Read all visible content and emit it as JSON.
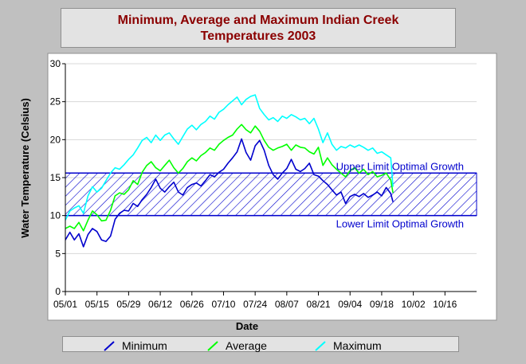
{
  "chart_data": {
    "type": "line",
    "title_line1": "Minimum, Average and Maximum Indian Creek",
    "title_line2": "Temperatures 2003",
    "xlabel": "Date",
    "ylabel": "Water Temperature (Celsius)",
    "ylim": [
      0,
      30
    ],
    "yticks": [
      0,
      5,
      10,
      15,
      20,
      25,
      30
    ],
    "x_tick_labels": [
      "05/01",
      "05/15",
      "05/29",
      "06/12",
      "06/26",
      "07/10",
      "07/24",
      "08/07",
      "08/21",
      "09/04",
      "09/18",
      "10/02",
      "10/16"
    ],
    "x_range_days": [
      0,
      182
    ],
    "grid": true,
    "legend_placement": "bottom",
    "band": {
      "lower": 10,
      "upper": 15.6,
      "upper_label": "Upper Limit Optimal Growth",
      "lower_label": "Lower Limit Optimal Growth",
      "color": "#0000cd"
    },
    "series": [
      {
        "name": "Minimum",
        "color": "#0000cd",
        "points": [
          [
            0,
            6.8
          ],
          [
            2,
            7.8
          ],
          [
            4,
            6.8
          ],
          [
            6,
            7.6
          ],
          [
            8,
            5.9
          ],
          [
            10,
            7.5
          ],
          [
            12,
            8.3
          ],
          [
            14,
            7.9
          ],
          [
            16,
            6.8
          ],
          [
            18,
            6.6
          ],
          [
            20,
            7.3
          ],
          [
            22,
            9.5
          ],
          [
            24,
            10.3
          ],
          [
            26,
            10.7
          ],
          [
            28,
            10.6
          ],
          [
            30,
            11.6
          ],
          [
            32,
            11.2
          ],
          [
            34,
            12.1
          ],
          [
            36,
            12.8
          ],
          [
            38,
            13.7
          ],
          [
            40,
            14.8
          ],
          [
            42,
            13.6
          ],
          [
            44,
            13.1
          ],
          [
            46,
            13.8
          ],
          [
            48,
            14.4
          ],
          [
            50,
            13.1
          ],
          [
            52,
            12.7
          ],
          [
            54,
            13.7
          ],
          [
            56,
            14.1
          ],
          [
            58,
            14.3
          ],
          [
            60,
            13.9
          ],
          [
            62,
            14.6
          ],
          [
            64,
            15.4
          ],
          [
            66,
            15.1
          ],
          [
            68,
            15.7
          ],
          [
            70,
            16.1
          ],
          [
            72,
            16.9
          ],
          [
            74,
            17.6
          ],
          [
            76,
            18.4
          ],
          [
            78,
            20.1
          ],
          [
            80,
            18.3
          ],
          [
            82,
            17.3
          ],
          [
            84,
            19.2
          ],
          [
            86,
            19.9
          ],
          [
            88,
            18.6
          ],
          [
            90,
            16.6
          ],
          [
            92,
            15.4
          ],
          [
            94,
            14.8
          ],
          [
            96,
            15.6
          ],
          [
            98,
            16.2
          ],
          [
            100,
            17.4
          ],
          [
            102,
            16.1
          ],
          [
            104,
            15.8
          ],
          [
            106,
            16.2
          ],
          [
            108,
            16.9
          ],
          [
            110,
            15.4
          ],
          [
            112,
            15.2
          ],
          [
            114,
            14.6
          ],
          [
            116,
            14.1
          ],
          [
            118,
            13.4
          ],
          [
            120,
            12.7
          ],
          [
            122,
            13.1
          ],
          [
            124,
            11.6
          ],
          [
            126,
            12.5
          ],
          [
            128,
            12.8
          ],
          [
            130,
            12.5
          ],
          [
            132,
            12.9
          ],
          [
            134,
            12.4
          ],
          [
            136,
            12.7
          ],
          [
            138,
            13.1
          ],
          [
            140,
            12.6
          ],
          [
            142,
            13.7
          ],
          [
            144,
            12.9
          ],
          [
            145,
            11.8
          ]
        ]
      },
      {
        "name": "Average",
        "color": "#00ff00",
        "points": [
          [
            0,
            8.3
          ],
          [
            2,
            8.6
          ],
          [
            4,
            8.3
          ],
          [
            6,
            9.1
          ],
          [
            8,
            8.0
          ],
          [
            10,
            9.4
          ],
          [
            12,
            10.6
          ],
          [
            14,
            10.1
          ],
          [
            16,
            9.3
          ],
          [
            18,
            9.4
          ],
          [
            20,
            10.7
          ],
          [
            22,
            12.6
          ],
          [
            24,
            13.0
          ],
          [
            26,
            12.8
          ],
          [
            28,
            13.4
          ],
          [
            30,
            14.6
          ],
          [
            32,
            14.1
          ],
          [
            34,
            15.7
          ],
          [
            36,
            16.6
          ],
          [
            38,
            17.1
          ],
          [
            40,
            16.3
          ],
          [
            42,
            15.9
          ],
          [
            44,
            16.6
          ],
          [
            46,
            17.3
          ],
          [
            48,
            16.3
          ],
          [
            50,
            15.6
          ],
          [
            52,
            16.2
          ],
          [
            54,
            17.1
          ],
          [
            56,
            17.6
          ],
          [
            58,
            17.2
          ],
          [
            60,
            17.9
          ],
          [
            62,
            18.3
          ],
          [
            64,
            18.9
          ],
          [
            66,
            18.6
          ],
          [
            68,
            19.4
          ],
          [
            70,
            19.9
          ],
          [
            72,
            20.3
          ],
          [
            74,
            20.6
          ],
          [
            76,
            21.4
          ],
          [
            78,
            22.0
          ],
          [
            80,
            21.3
          ],
          [
            82,
            20.9
          ],
          [
            84,
            21.8
          ],
          [
            86,
            21.1
          ],
          [
            88,
            19.9
          ],
          [
            90,
            19.0
          ],
          [
            92,
            18.6
          ],
          [
            94,
            18.9
          ],
          [
            96,
            19.1
          ],
          [
            98,
            19.4
          ],
          [
            100,
            18.6
          ],
          [
            102,
            19.3
          ],
          [
            104,
            19.0
          ],
          [
            106,
            18.9
          ],
          [
            108,
            18.4
          ],
          [
            110,
            18.1
          ],
          [
            112,
            19.0
          ],
          [
            114,
            16.6
          ],
          [
            116,
            17.6
          ],
          [
            118,
            16.7
          ],
          [
            120,
            16.1
          ],
          [
            122,
            15.6
          ],
          [
            124,
            15.1
          ],
          [
            126,
            15.9
          ],
          [
            128,
            16.3
          ],
          [
            130,
            15.6
          ],
          [
            132,
            16.1
          ],
          [
            134,
            15.4
          ],
          [
            136,
            15.8
          ],
          [
            138,
            15.1
          ],
          [
            140,
            15.3
          ],
          [
            142,
            15.6
          ],
          [
            144,
            14.7
          ],
          [
            145,
            13.0
          ]
        ]
      },
      {
        "name": "Maximum",
        "color": "#00ffff",
        "points": [
          [
            0,
            9.4
          ],
          [
            2,
            10.6
          ],
          [
            4,
            11.0
          ],
          [
            6,
            11.3
          ],
          [
            8,
            10.3
          ],
          [
            10,
            12.6
          ],
          [
            12,
            13.8
          ],
          [
            14,
            13.1
          ],
          [
            16,
            13.6
          ],
          [
            18,
            14.6
          ],
          [
            20,
            15.6
          ],
          [
            22,
            16.3
          ],
          [
            24,
            16.1
          ],
          [
            26,
            16.7
          ],
          [
            28,
            17.4
          ],
          [
            30,
            18.0
          ],
          [
            32,
            18.9
          ],
          [
            34,
            19.9
          ],
          [
            36,
            20.3
          ],
          [
            38,
            19.6
          ],
          [
            40,
            20.6
          ],
          [
            42,
            19.9
          ],
          [
            44,
            20.6
          ],
          [
            46,
            20.9
          ],
          [
            48,
            20.1
          ],
          [
            50,
            19.4
          ],
          [
            52,
            20.4
          ],
          [
            54,
            21.4
          ],
          [
            56,
            21.9
          ],
          [
            58,
            21.3
          ],
          [
            60,
            22.0
          ],
          [
            62,
            22.4
          ],
          [
            64,
            23.1
          ],
          [
            66,
            22.7
          ],
          [
            68,
            23.6
          ],
          [
            70,
            24.0
          ],
          [
            72,
            24.6
          ],
          [
            74,
            25.1
          ],
          [
            76,
            25.6
          ],
          [
            78,
            24.6
          ],
          [
            80,
            25.3
          ],
          [
            82,
            25.7
          ],
          [
            84,
            25.9
          ],
          [
            86,
            24.1
          ],
          [
            88,
            23.3
          ],
          [
            90,
            22.6
          ],
          [
            92,
            22.9
          ],
          [
            94,
            22.4
          ],
          [
            96,
            23.1
          ],
          [
            98,
            22.8
          ],
          [
            100,
            23.3
          ],
          [
            102,
            23.0
          ],
          [
            104,
            22.6
          ],
          [
            106,
            22.8
          ],
          [
            108,
            22.1
          ],
          [
            110,
            22.8
          ],
          [
            112,
            21.4
          ],
          [
            114,
            19.6
          ],
          [
            116,
            20.9
          ],
          [
            118,
            19.4
          ],
          [
            120,
            18.6
          ],
          [
            122,
            19.1
          ],
          [
            124,
            18.9
          ],
          [
            126,
            19.3
          ],
          [
            128,
            19.0
          ],
          [
            130,
            19.3
          ],
          [
            132,
            19.0
          ],
          [
            134,
            18.6
          ],
          [
            136,
            18.9
          ],
          [
            138,
            18.2
          ],
          [
            140,
            18.4
          ],
          [
            142,
            18.0
          ],
          [
            144,
            17.6
          ],
          [
            145,
            13.8
          ]
        ]
      }
    ]
  }
}
